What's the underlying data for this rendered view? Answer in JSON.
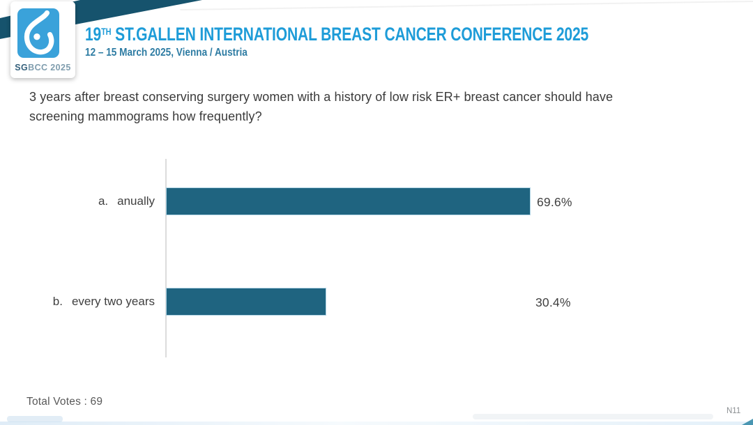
{
  "header": {
    "logo": {
      "acronym_bold": "SG",
      "acronym_rest": "BCC 2025",
      "brand_blue": "#3aa2da"
    },
    "title_num": "19",
    "title_sup": "TH",
    "title_main": "ST.GALLEN INTERNATIONAL BREAST CANCER CONFERENCE 2025",
    "subtitle": "12 – 15 March 2025, Vienna / Austria",
    "title_color": "#1e9cd8",
    "banner_color": "#16536d"
  },
  "question": {
    "text": "3 years after breast conserving surgery women with a history of low risk ER+ breast cancer should have screening mammograms how frequently?"
  },
  "chart_data": {
    "type": "bar",
    "orientation": "horizontal",
    "title": "",
    "xlabel": "",
    "ylabel": "",
    "xlim": [
      0,
      100
    ],
    "grid": false,
    "legend": false,
    "bar_color": "#1f6480",
    "axis_color": "#dcdcdc",
    "categories": [
      "a. anually",
      "b. every two years"
    ],
    "values": [
      69.6,
      30.4
    ],
    "rows": [
      {
        "prefix": "a.",
        "label": "anually",
        "value": 69.6,
        "display": "69.6%"
      },
      {
        "prefix": "b.",
        "label": "every two years",
        "value": 30.4,
        "display": "30.4%"
      }
    ]
  },
  "footer": {
    "total_votes": "Total Votes : 69",
    "slide_code": "N11"
  }
}
